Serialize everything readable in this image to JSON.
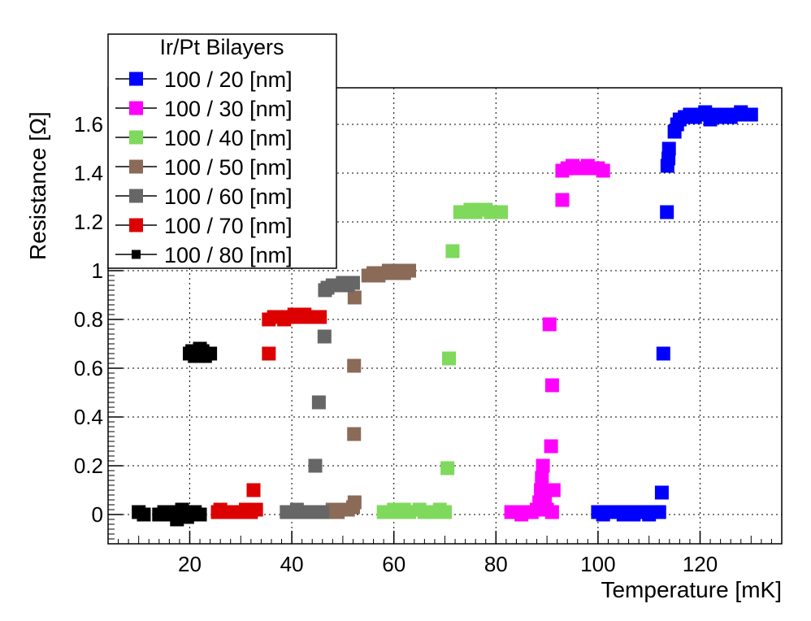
{
  "chart_data": {
    "type": "scatter",
    "title": "",
    "xlabel": "Temperature [mK]",
    "ylabel": "Resistance [Ω]",
    "xlim": [
      4,
      136
    ],
    "ylim": [
      -0.12,
      1.75
    ],
    "xticks": [
      20,
      40,
      60,
      80,
      100,
      120
    ],
    "yticks": [
      0,
      0.2,
      0.4,
      0.6,
      0.8,
      1,
      1.2,
      1.4,
      1.6
    ],
    "ytick_labels": [
      "0",
      "0.2",
      "0.4",
      "0.6",
      "0.8",
      "1",
      "1.2",
      "1.4",
      "1.6"
    ],
    "grid": true,
    "legend": {
      "title": "Ir/Pt Bilayers",
      "placement": "top-left"
    },
    "series": [
      {
        "name": "100 / 20 [nm]",
        "color": "#0000ff",
        "marker": "square",
        "points": [
          [
            100,
            0.01
          ],
          [
            101,
            0.0
          ],
          [
            102,
            0.01
          ],
          [
            104,
            0.01
          ],
          [
            105,
            0.0
          ],
          [
            106,
            0.01
          ],
          [
            107,
            0.0
          ],
          [
            108,
            0.01
          ],
          [
            109,
            0.01
          ],
          [
            110,
            0.0
          ],
          [
            111,
            0.01
          ],
          [
            112,
            0.01
          ],
          [
            112.5,
            0.09
          ],
          [
            112.8,
            0.66
          ],
          [
            113.5,
            1.24
          ],
          [
            113.6,
            1.43
          ],
          [
            113.8,
            1.46
          ],
          [
            113.9,
            1.5
          ],
          [
            115,
            1.57
          ],
          [
            115.5,
            1.6
          ],
          [
            116,
            1.62
          ],
          [
            117,
            1.63
          ],
          [
            118,
            1.64
          ],
          [
            119,
            1.63
          ],
          [
            120,
            1.64
          ],
          [
            121,
            1.65
          ],
          [
            122,
            1.62
          ],
          [
            123,
            1.64
          ],
          [
            124,
            1.63
          ],
          [
            125,
            1.64
          ],
          [
            126,
            1.63
          ],
          [
            127,
            1.64
          ],
          [
            128,
            1.65
          ],
          [
            129,
            1.64
          ],
          [
            130,
            1.64
          ]
        ]
      },
      {
        "name": "100 / 30 [nm]",
        "color": "#ff00ff",
        "marker": "square",
        "points": [
          [
            83,
            0.01
          ],
          [
            84,
            0.01
          ],
          [
            85,
            0.0
          ],
          [
            86,
            0.01
          ],
          [
            87,
            0.01
          ],
          [
            88,
            0.02
          ],
          [
            88.5,
            0.05
          ],
          [
            88.8,
            0.1
          ],
          [
            89,
            0.15
          ],
          [
            89.2,
            0.2
          ],
          [
            89.6,
            0.05
          ],
          [
            90,
            0.02
          ],
          [
            91,
            0.01
          ],
          [
            91.3,
            0.1
          ],
          [
            90.8,
            0.28
          ],
          [
            91,
            0.53
          ],
          [
            90.5,
            0.78
          ],
          [
            93,
            1.29
          ],
          [
            93,
            1.41
          ],
          [
            94,
            1.42
          ],
          [
            95,
            1.43
          ],
          [
            96,
            1.42
          ],
          [
            97,
            1.42
          ],
          [
            98,
            1.43
          ],
          [
            99,
            1.42
          ],
          [
            100,
            1.42
          ],
          [
            101,
            1.41
          ]
        ]
      },
      {
        "name": "100 / 40 [nm]",
        "color": "#7fd95c",
        "marker": "square",
        "points": [
          [
            58,
            0.01
          ],
          [
            59,
            0.01
          ],
          [
            60,
            0.02
          ],
          [
            61,
            0.01
          ],
          [
            62,
            0.02
          ],
          [
            63,
            0.01
          ],
          [
            65,
            0.02
          ],
          [
            66,
            0.01
          ],
          [
            67,
            0.01
          ],
          [
            68,
            0.01
          ],
          [
            69,
            0.02
          ],
          [
            70,
            0.01
          ],
          [
            70.5,
            0.19
          ],
          [
            70.8,
            0.64
          ],
          [
            71.5,
            1.08
          ],
          [
            73,
            1.24
          ],
          [
            74,
            1.24
          ],
          [
            75,
            1.25
          ],
          [
            76,
            1.24
          ],
          [
            77,
            1.25
          ],
          [
            78,
            1.25
          ],
          [
            79,
            1.24
          ],
          [
            80,
            1.24
          ],
          [
            81,
            1.24
          ]
        ]
      },
      {
        "name": "100 / 50 [nm]",
        "color": "#8b6a58",
        "marker": "square",
        "points": [
          [
            47,
            0.01
          ],
          [
            48,
            0.02
          ],
          [
            49,
            0.01
          ],
          [
            50,
            0.02
          ],
          [
            51,
            0.02
          ],
          [
            52,
            0.03
          ],
          [
            52.3,
            0.05
          ],
          [
            52.2,
            0.33
          ],
          [
            52.2,
            0.61
          ],
          [
            52.3,
            0.89
          ],
          [
            55,
            0.98
          ],
          [
            56,
            0.99
          ],
          [
            57,
            0.98
          ],
          [
            58,
            0.99
          ],
          [
            59,
            1.0
          ],
          [
            60,
            0.99
          ],
          [
            61,
            1.0
          ],
          [
            62,
            0.99
          ],
          [
            63,
            1.0
          ]
        ]
      },
      {
        "name": "100 / 60 [nm]",
        "color": "#666666",
        "marker": "square",
        "points": [
          [
            39,
            0.01
          ],
          [
            40,
            0.01
          ],
          [
            41,
            0.02
          ],
          [
            42,
            0.01
          ],
          [
            43,
            0.01
          ],
          [
            44,
            0.01
          ],
          [
            45,
            0.01
          ],
          [
            46,
            0.01
          ],
          [
            44.6,
            0.2
          ],
          [
            45.3,
            0.46
          ],
          [
            46.4,
            0.73
          ],
          [
            46.5,
            0.92
          ],
          [
            47,
            0.93
          ],
          [
            48,
            0.94
          ],
          [
            49,
            0.94
          ],
          [
            50,
            0.95
          ],
          [
            51,
            0.94
          ],
          [
            52,
            0.95
          ]
        ]
      },
      {
        "name": "100 / 70 [nm]",
        "color": "#dd0000",
        "marker": "square",
        "points": [
          [
            25.5,
            0.01
          ],
          [
            26,
            0.02
          ],
          [
            27,
            0.01
          ],
          [
            28,
            0.01
          ],
          [
            30,
            0.01
          ],
          [
            31,
            0.02
          ],
          [
            32,
            0.01
          ],
          [
            33,
            0.02
          ],
          [
            32.5,
            0.1
          ],
          [
            35.5,
            0.66
          ],
          [
            35.5,
            0.8
          ],
          [
            36.5,
            0.81
          ],
          [
            37.5,
            0.81
          ],
          [
            38.5,
            0.8
          ],
          [
            39.5,
            0.81
          ],
          [
            40.5,
            0.82
          ],
          [
            41.5,
            0.81
          ],
          [
            42.5,
            0.82
          ],
          [
            43.5,
            0.81
          ],
          [
            44.5,
            0.81
          ],
          [
            45.5,
            0.81
          ]
        ]
      },
      {
        "name": "100 / 80 [nm]",
        "color": "#000000",
        "marker": "square",
        "points": [
          [
            10,
            0.01
          ],
          [
            11,
            0.0
          ],
          [
            14,
            0.0
          ],
          [
            15,
            0.01
          ],
          [
            16,
            0.0
          ],
          [
            17,
            0.01
          ],
          [
            18,
            0.0
          ],
          [
            18.5,
            0.02
          ],
          [
            19,
            0.01
          ],
          [
            20,
            0.0
          ],
          [
            21,
            0.01
          ],
          [
            22,
            0.0
          ],
          [
            17.5,
            -0.02
          ],
          [
            19.5,
            -0.01
          ],
          [
            20,
            0.66
          ],
          [
            20.5,
            0.67
          ],
          [
            21,
            0.65
          ],
          [
            21.5,
            0.66
          ],
          [
            22,
            0.68
          ],
          [
            22.5,
            0.67
          ],
          [
            23,
            0.65
          ],
          [
            23.5,
            0.66
          ],
          [
            24,
            0.66
          ]
        ]
      }
    ]
  }
}
